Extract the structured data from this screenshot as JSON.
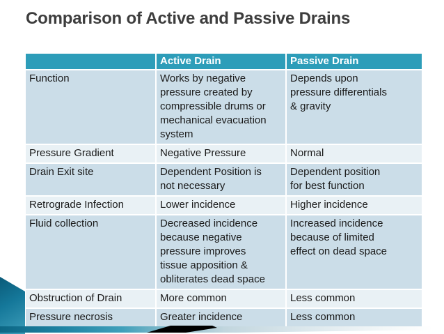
{
  "slide": {
    "title": "Comparison of Active and Passive Drains"
  },
  "table": {
    "columns": [
      "",
      "Active Drain",
      "Passive Drain"
    ],
    "rows": [
      {
        "label": "Function",
        "active": "Works by negative\npressure created by\ncompressible drums or\nmechanical evacuation\nsystem",
        "passive": "Depends upon\npressure differentials\n& gravity"
      },
      {
        "label": "Pressure Gradient",
        "active": "Negative Pressure",
        "passive": "Normal"
      },
      {
        "label": "Drain Exit site",
        "active": "Dependent Position is\nnot necessary",
        "passive": "Dependent position\nfor best function"
      },
      {
        "label": "Retrograde Infection",
        "active": "Lower incidence",
        "passive": "Higher incidence"
      },
      {
        "label": "Fluid collection",
        "active": "Decreased incidence\nbecause negative\npressure improves\ntissue apposition &\nobliterates dead space",
        "passive": "Increased incidence\nbecause of limited\neffect on dead space"
      },
      {
        "label": "Obstruction of Drain",
        "active": "More common",
        "passive": "Less common"
      },
      {
        "label": "Pressure necrosis",
        "active": "Greater incidence",
        "passive": "Less common"
      }
    ]
  },
  "colors": {
    "header_teal": "#2d9db9",
    "row_dark": "#cbdde8",
    "row_light": "#e9f1f5",
    "title_text": "#3d3d3d",
    "body_text": "#1a1a1a",
    "header_text": "#ffffff",
    "accent_dark_teal": "#0a5a78",
    "accent_mid_teal": "#2791ad",
    "swoosh_black": "#000000",
    "background": "#ffffff"
  }
}
